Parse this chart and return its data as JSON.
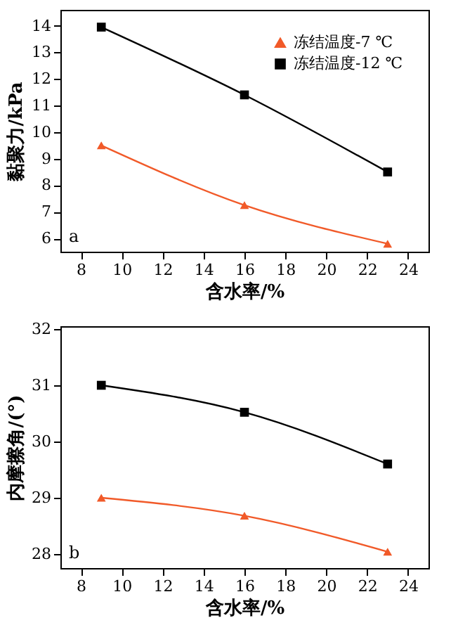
{
  "chart_data": [
    {
      "type": "line",
      "xlabel": "含水率/%",
      "ylabel": "黏聚力/kPa",
      "xlim": [
        7,
        25
      ],
      "xticks": [
        8,
        10,
        12,
        14,
        16,
        18,
        20,
        22,
        24
      ],
      "ylim": [
        5.5,
        14.6
      ],
      "yticks": [
        6,
        7,
        8,
        9,
        10,
        11,
        12,
        13,
        14
      ],
      "x": [
        9,
        16,
        23
      ],
      "grid": false,
      "legend": "top right",
      "annotations": [
        "a"
      ],
      "series": [
        {
          "name": "冻结温度-7 ℃",
          "color": "#f15a29",
          "marker": "triangle",
          "values": [
            9.5,
            7.25,
            5.8
          ]
        },
        {
          "name": "冻结温度-12 ℃",
          "color": "#000000",
          "marker": "square",
          "values": [
            13.95,
            11.4,
            8.5
          ]
        }
      ]
    },
    {
      "type": "line",
      "xlabel": "含水率/%",
      "ylabel": "内摩擦角/(°)",
      "xlim": [
        7,
        25
      ],
      "xticks": [
        8,
        10,
        12,
        14,
        16,
        18,
        20,
        22,
        24
      ],
      "ylim": [
        27.75,
        32.05
      ],
      "yticks": [
        28,
        29,
        30,
        31,
        32
      ],
      "x": [
        9,
        16,
        23
      ],
      "grid": false,
      "legend": "top right",
      "annotations": [
        "b"
      ],
      "series": [
        {
          "name": "冻结温度-7 ℃",
          "color": "#f15a29",
          "marker": "triangle",
          "values": [
            29.0,
            28.68,
            28.04
          ]
        },
        {
          "name": "冻结温度-12 ℃",
          "color": "#000000",
          "marker": "square",
          "values": [
            31.0,
            30.52,
            29.6
          ]
        }
      ]
    }
  ]
}
